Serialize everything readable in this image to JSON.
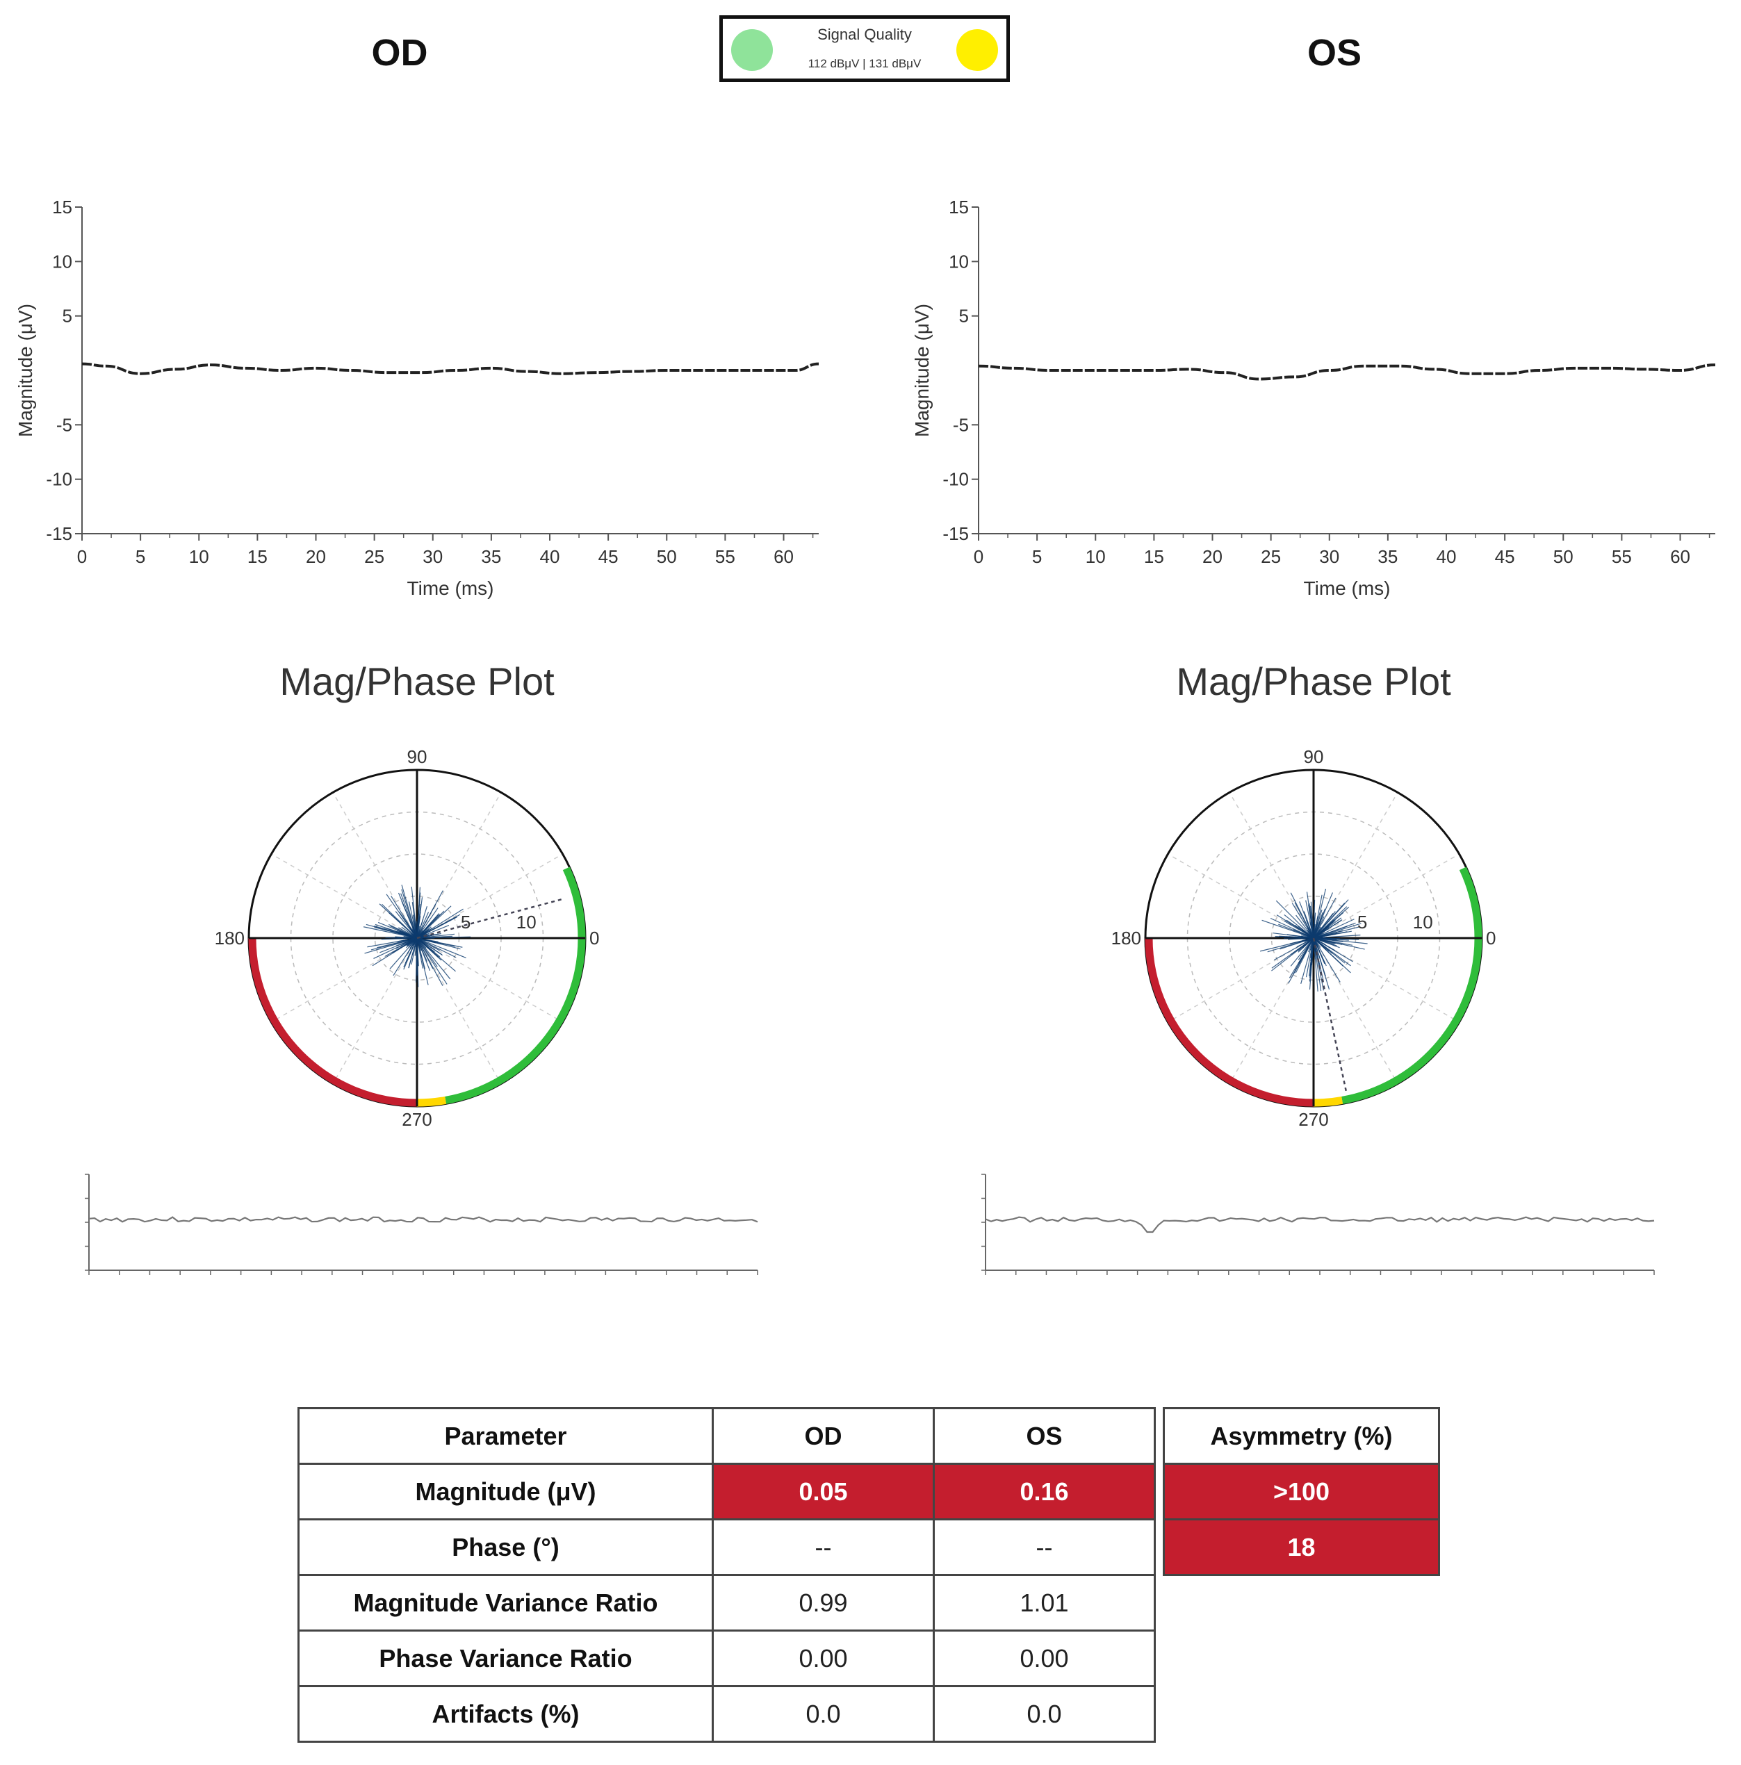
{
  "header": {
    "od_title": "OD",
    "os_title": "OS",
    "signal_quality": {
      "title": "Signal Quality",
      "values_text": "112 dBμV  |  131 dBμV",
      "od_color": "#8fe39a",
      "os_color": "#ffef00"
    }
  },
  "chart_data": [
    {
      "id": "od-waveform",
      "type": "line",
      "xlabel": "Time (ms)",
      "ylabel": "Magnitude (μV)",
      "xlim": [
        0,
        63
      ],
      "ylim": [
        -15,
        15
      ],
      "xticks": [
        0,
        5,
        10,
        15,
        20,
        25,
        30,
        35,
        40,
        45,
        50,
        55,
        60
      ],
      "yticks": [
        15,
        10,
        5,
        -5,
        -10,
        -15
      ],
      "x": [
        0,
        2,
        5,
        8,
        11,
        14,
        17,
        20,
        23,
        26,
        29,
        32,
        35,
        38,
        41,
        44,
        47,
        50,
        53,
        56,
        59,
        61,
        63
      ],
      "y": [
        0.6,
        0.4,
        -0.3,
        0.1,
        0.5,
        0.2,
        0.0,
        0.2,
        0.0,
        -0.2,
        -0.2,
        0.0,
        0.2,
        -0.1,
        -0.3,
        -0.2,
        -0.1,
        0.0,
        0.0,
        0.0,
        0.0,
        0.0,
        0.6
      ]
    },
    {
      "id": "os-waveform",
      "type": "line",
      "xlabel": "Time (ms)",
      "ylabel": "Magnitude (μV)",
      "xlim": [
        0,
        63
      ],
      "ylim": [
        -15,
        15
      ],
      "xticks": [
        0,
        5,
        10,
        15,
        20,
        25,
        30,
        35,
        40,
        45,
        50,
        55,
        60
      ],
      "yticks": [
        15,
        10,
        5,
        -5,
        -10,
        -15
      ],
      "x": [
        0,
        3,
        6,
        9,
        12,
        15,
        18,
        21,
        24,
        27,
        30,
        33,
        36,
        39,
        42,
        45,
        48,
        51,
        54,
        57,
        60,
        63
      ],
      "y": [
        0.4,
        0.2,
        0.0,
        0.0,
        0.0,
        0.0,
        0.1,
        -0.2,
        -0.8,
        -0.6,
        0.0,
        0.4,
        0.4,
        0.1,
        -0.3,
        -0.3,
        0.0,
        0.2,
        0.2,
        0.1,
        0.0,
        0.5
      ]
    },
    {
      "id": "od-polar",
      "type": "scatter",
      "title": "Mag/Phase Plot",
      "angle_labels": [
        "90",
        "0",
        "180",
        "270"
      ],
      "radial_labels": [
        "5",
        "10"
      ],
      "rmax": 14,
      "arcs": [
        {
          "from_deg": 0,
          "to_deg": 25,
          "color": "#2fbd3a"
        },
        {
          "from_deg": 280,
          "to_deg": 360,
          "color": "#2fbd3a"
        },
        {
          "from_deg": 270,
          "to_deg": 280,
          "color": "#ffd700"
        },
        {
          "from_deg": 180,
          "to_deg": 270,
          "color": "#c41e2e"
        }
      ],
      "mean_vector": {
        "angle_deg": 15,
        "magnitude": 12.5
      }
    },
    {
      "id": "os-polar",
      "type": "scatter",
      "title": "Mag/Phase Plot",
      "angle_labels": [
        "90",
        "0",
        "180",
        "270"
      ],
      "radial_labels": [
        "5",
        "10"
      ],
      "rmax": 14,
      "arcs": [
        {
          "from_deg": 0,
          "to_deg": 25,
          "color": "#2fbd3a"
        },
        {
          "from_deg": 280,
          "to_deg": 360,
          "color": "#2fbd3a"
        },
        {
          "from_deg": 270,
          "to_deg": 280,
          "color": "#ffd700"
        },
        {
          "from_deg": 180,
          "to_deg": 270,
          "color": "#c41e2e"
        }
      ],
      "mean_vector": {
        "angle_deg": 282,
        "magnitude": 13.0
      }
    },
    {
      "id": "od-trace",
      "type": "line",
      "note": "raw signal trace",
      "x_count": 120,
      "tick_count": 22
    },
    {
      "id": "os-trace",
      "type": "line",
      "note": "raw signal trace",
      "x_count": 120,
      "tick_count": 22
    }
  ],
  "table": {
    "headers": [
      "Parameter",
      "OD",
      "OS"
    ],
    "rows": [
      {
        "param": "Magnitude (μV)",
        "od": "0.05",
        "os": "0.16"
      },
      {
        "param": "Phase (°)",
        "od": "--",
        "os": "--"
      },
      {
        "param": "Magnitude Variance Ratio",
        "od": "0.99",
        "os": "1.01"
      },
      {
        "param": "Phase Variance Ratio",
        "od": "0.00",
        "os": "0.00"
      },
      {
        "param": "Artifacts (%)",
        "od": "0.0",
        "os": "0.0"
      }
    ]
  },
  "asymmetry": {
    "header": "Asymmetry (%)",
    "magnitude": ">100",
    "phase": "18"
  },
  "colors": {
    "abnormal_red": "#c41e2e",
    "polar_scatter": "#0d3b6e"
  }
}
